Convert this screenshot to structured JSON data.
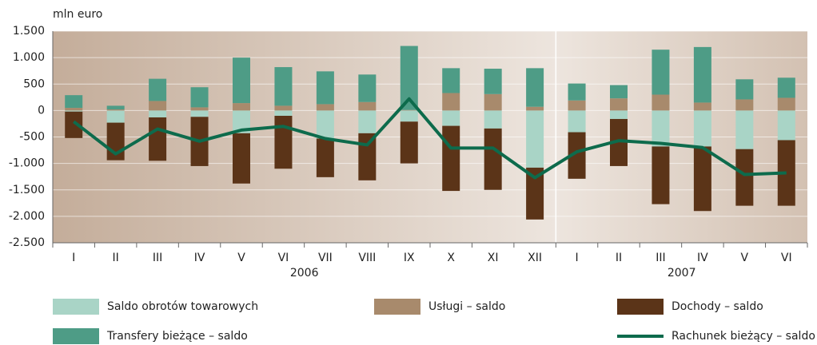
{
  "chart_data": {
    "type": "stacked_bar_line",
    "y_axis_label": "mln euro",
    "categories": [
      "I",
      "II",
      "III",
      "IV",
      "V",
      "VI",
      "VII",
      "VIII",
      "IX",
      "X",
      "XI",
      "XII",
      "I",
      "II",
      "III",
      "IV",
      "V",
      "VI"
    ],
    "groups": [
      {
        "label": "2006",
        "categories": 12
      },
      {
        "label": "2007",
        "categories": 6
      }
    ],
    "series": [
      {
        "name": "Saldo obrotów towarowych",
        "color": "#a9d4c6",
        "kind": "bar",
        "values": [
          -20,
          -230,
          -130,
          -120,
          -430,
          -100,
          -530,
          -430,
          -210,
          -290,
          -340,
          -1080,
          -410,
          -160,
          -680,
          -680,
          -730,
          -560
        ]
      },
      {
        "name": "Usługi – saldo",
        "color": "#a88a6c",
        "kind": "bar",
        "values": [
          50,
          20,
          180,
          60,
          140,
          90,
          120,
          160,
          10,
          330,
          310,
          70,
          190,
          230,
          300,
          150,
          210,
          240
        ]
      },
      {
        "name": "Dochody – saldo",
        "color": "#5b3418",
        "kind": "bar",
        "values": [
          -500,
          -710,
          -820,
          -930,
          -950,
          -1000,
          -730,
          -890,
          -790,
          -1230,
          -1160,
          -980,
          -880,
          -890,
          -1090,
          -1220,
          -1070,
          -1240
        ]
      },
      {
        "name": "Transfery bieżące – saldo",
        "color": "#4e9c86",
        "kind": "bar",
        "values": [
          240,
          70,
          420,
          380,
          860,
          730,
          620,
          520,
          1210,
          470,
          480,
          730,
          320,
          250,
          850,
          1050,
          380,
          380
        ]
      },
      {
        "name": "Rachunek bieżący – saldo",
        "color": "#0d6b4c",
        "kind": "line",
        "values": [
          -210,
          -820,
          -350,
          -580,
          -370,
          -300,
          -530,
          -650,
          220,
          -710,
          -710,
          -1270,
          -780,
          -570,
          -620,
          -700,
          -1210,
          -1180
        ]
      }
    ],
    "ylim": [
      -2500,
      1500
    ],
    "yticks": [
      {
        "value": 1500,
        "label": "1.500"
      },
      {
        "value": 1000,
        "label": "1.000"
      },
      500,
      0,
      -500,
      {
        "value": -1000,
        "label": "-1.000"
      },
      {
        "value": -1500,
        "label": "-1.500"
      },
      {
        "value": -2000,
        "label": "-2.000"
      },
      {
        "value": -2500,
        "label": "-2.500"
      }
    ],
    "grid": true
  }
}
